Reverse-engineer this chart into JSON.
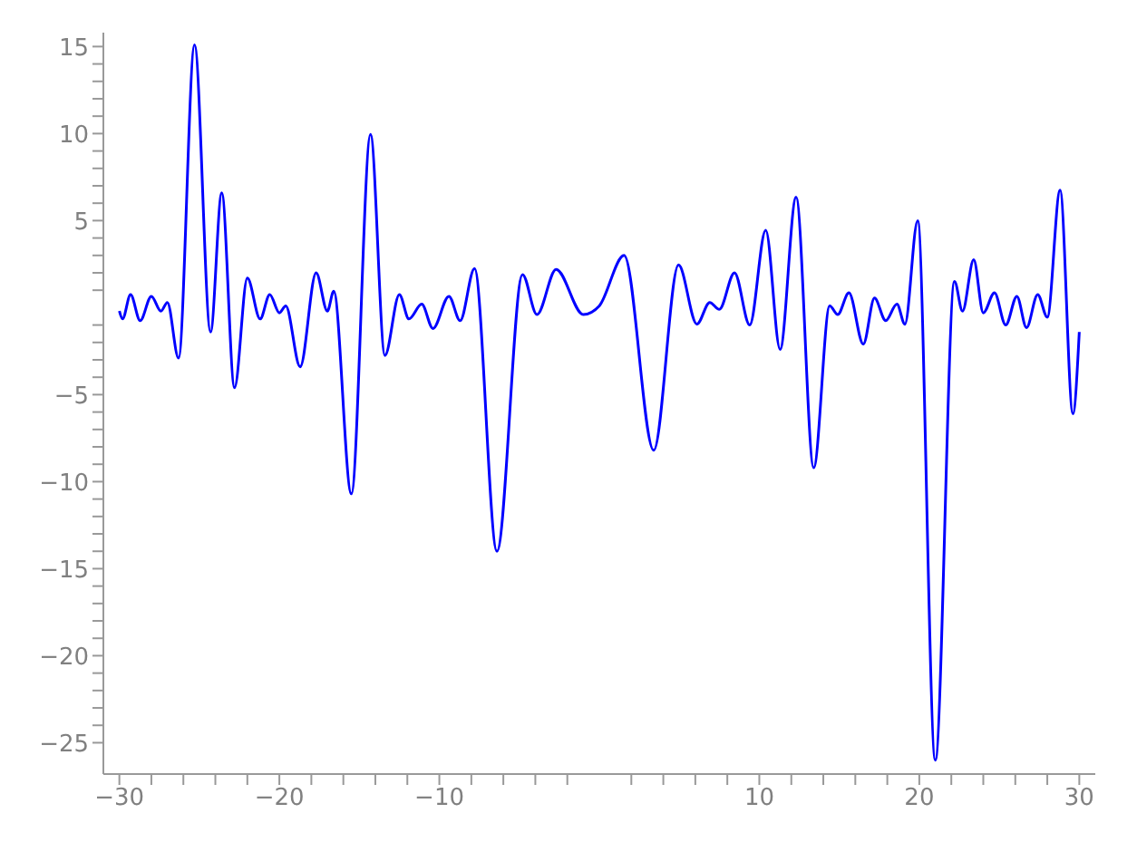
{
  "chart_data": {
    "type": "line",
    "x": [
      -30,
      -29.8,
      -29.3,
      -28.7,
      -28.0,
      -27.4,
      -27.0,
      -26.3,
      -25.3,
      -24.3,
      -23.6,
      -22.8,
      -22.0,
      -21.2,
      -20.6,
      -20.0,
      -19.6,
      -18.7,
      -17.7,
      -17.0,
      -16.6,
      -15.5,
      -14.3,
      -13.4,
      -12.5,
      -11.9,
      -11.1,
      -10.4,
      -9.4,
      -8.7,
      -7.8,
      -6.4,
      -4.8,
      -3.9,
      -2.7,
      -1.0,
      0,
      1.55,
      3.4,
      4.95,
      6.1,
      6.9,
      7.5,
      8.45,
      9.4,
      10.4,
      11.3,
      12.3,
      13.4,
      14.4,
      14.9,
      15.6,
      16.5,
      17.2,
      17.9,
      18.6,
      19.1,
      19.9,
      21.0,
      22.2,
      22.7,
      23.4,
      24.0,
      24.7,
      25.4,
      26.1,
      26.7,
      27.4,
      28.0,
      28.8,
      29.6,
      30
    ],
    "series": [
      {
        "color": "#0000ff",
        "values": [
          -0.2,
          -0.65,
          0.75,
          -0.75,
          0.65,
          -0.2,
          0.3,
          -2.9,
          15.1,
          -1.4,
          6.6,
          -4.6,
          1.7,
          -0.65,
          0.75,
          -0.3,
          0.1,
          -3.4,
          2.0,
          -0.2,
          0.95,
          -10.7,
          9.95,
          -2.75,
          0.75,
          -0.65,
          0.2,
          -1.2,
          0.65,
          -0.75,
          2.25,
          -14.0,
          1.9,
          -0.4,
          2.2,
          -0.4,
          0.1,
          3.0,
          -8.2,
          2.45,
          -0.95,
          0.3,
          -0.1,
          2.0,
          -1.0,
          4.45,
          -2.4,
          6.35,
          -9.2,
          0.1,
          -0.4,
          0.85,
          -2.1,
          0.55,
          -0.75,
          0.2,
          -0.95,
          5.0,
          -26.0,
          1.5,
          -0.2,
          2.75,
          -0.3,
          0.85,
          -1.0,
          0.65,
          -1.15,
          0.75,
          -0.55,
          6.75,
          -6.1,
          -1.4
        ]
      }
    ],
    "xlim": [
      -31,
      31
    ],
    "xticks": [
      -30,
      {
        "value": -28,
        "label": null
      },
      {
        "value": -26,
        "label": null
      },
      {
        "value": -24,
        "label": null
      },
      {
        "value": -22,
        "label": null
      },
      -20,
      {
        "value": -18,
        "label": null
      },
      {
        "value": -16,
        "label": null
      },
      {
        "value": -14,
        "label": null
      },
      {
        "value": -12,
        "label": null
      },
      -10,
      {
        "value": -8,
        "label": null
      },
      {
        "value": -6,
        "label": null
      },
      {
        "value": -4,
        "label": null
      },
      {
        "value": -2,
        "label": null
      },
      {
        "value": 2,
        "label": null
      },
      {
        "value": 4,
        "label": null
      },
      {
        "value": 6,
        "label": null
      },
      {
        "value": 8,
        "label": null
      },
      10,
      {
        "value": 12,
        "label": null
      },
      {
        "value": 14,
        "label": null
      },
      {
        "value": 16,
        "label": null
      },
      {
        "value": 18,
        "label": null
      },
      20,
      {
        "value": 22,
        "label": null
      },
      {
        "value": 24,
        "label": null
      },
      {
        "value": 26,
        "label": null
      },
      {
        "value": 28,
        "label": null
      },
      30
    ],
    "ylim": [
      -26.8,
      15.8
    ],
    "yticks": [
      -25,
      {
        "value": -24,
        "label": null
      },
      {
        "value": -23,
        "label": null
      },
      {
        "value": -22,
        "label": null
      },
      {
        "value": -21,
        "label": null
      },
      -20,
      {
        "value": -19,
        "label": null
      },
      {
        "value": -18,
        "label": null
      },
      {
        "value": -17,
        "label": null
      },
      {
        "value": -16,
        "label": null
      },
      -15,
      {
        "value": -14,
        "label": null
      },
      {
        "value": -13,
        "label": null
      },
      {
        "value": -12,
        "label": null
      },
      {
        "value": -11,
        "label": null
      },
      -10,
      {
        "value": -9,
        "label": null
      },
      {
        "value": -8,
        "label": null
      },
      {
        "value": -7,
        "label": null
      },
      {
        "value": -6,
        "label": null
      },
      -5,
      {
        "value": -4,
        "label": null
      },
      {
        "value": -3,
        "label": null
      },
      {
        "value": -2,
        "label": null
      },
      {
        "value": -1,
        "label": null
      },
      {
        "value": 1,
        "label": null
      },
      {
        "value": 2,
        "label": null
      },
      {
        "value": 3,
        "label": null
      },
      {
        "value": 4,
        "label": null
      },
      5,
      {
        "value": 6,
        "label": null
      },
      {
        "value": 7,
        "label": null
      },
      {
        "value": 8,
        "label": null
      },
      {
        "value": 9,
        "label": null
      },
      10,
      {
        "value": 11,
        "label": null
      },
      {
        "value": 12,
        "label": null
      },
      {
        "value": 13,
        "label": null
      },
      {
        "value": 14,
        "label": null
      },
      15
    ],
    "grid": false,
    "legend": false,
    "marker": "none",
    "line_style": "solid"
  }
}
